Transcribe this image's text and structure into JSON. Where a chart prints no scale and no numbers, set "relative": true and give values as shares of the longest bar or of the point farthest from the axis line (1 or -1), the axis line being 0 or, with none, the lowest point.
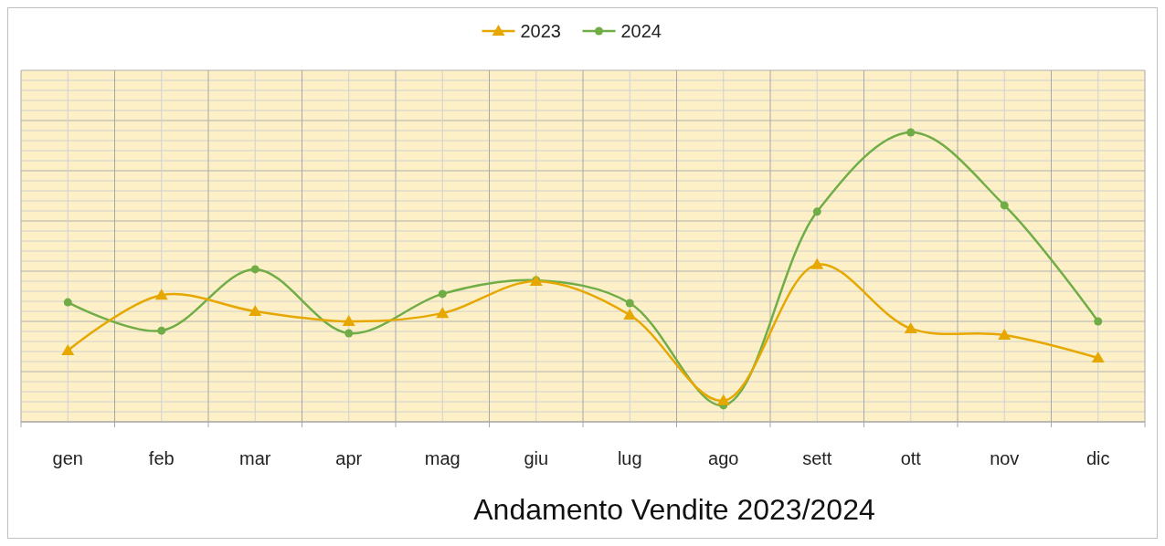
{
  "chart_data": {
    "type": "line",
    "title": "Andamento Vendite 2023/2024",
    "relative": true,
    "categories": [
      "gen",
      "feb",
      "mar",
      "apr",
      "mag",
      "giu",
      "lug",
      "ago",
      "sett",
      "ott",
      "nov",
      "dic"
    ],
    "series": [
      {
        "name": "2023",
        "color": "#e6a700",
        "marker": "triangle",
        "values": [
          0.246,
          0.438,
          0.382,
          0.347,
          0.375,
          0.486,
          0.369,
          0.073,
          0.543,
          0.322,
          0.3,
          0.221
        ]
      },
      {
        "name": "2024",
        "color": "#70ad47",
        "marker": "circle",
        "values": [
          0.413,
          0.315,
          0.527,
          0.306,
          0.442,
          0.489,
          0.41,
          0.057,
          0.726,
          1,
          0.748,
          0.347
        ]
      }
    ],
    "grid": true,
    "legend": "top"
  }
}
